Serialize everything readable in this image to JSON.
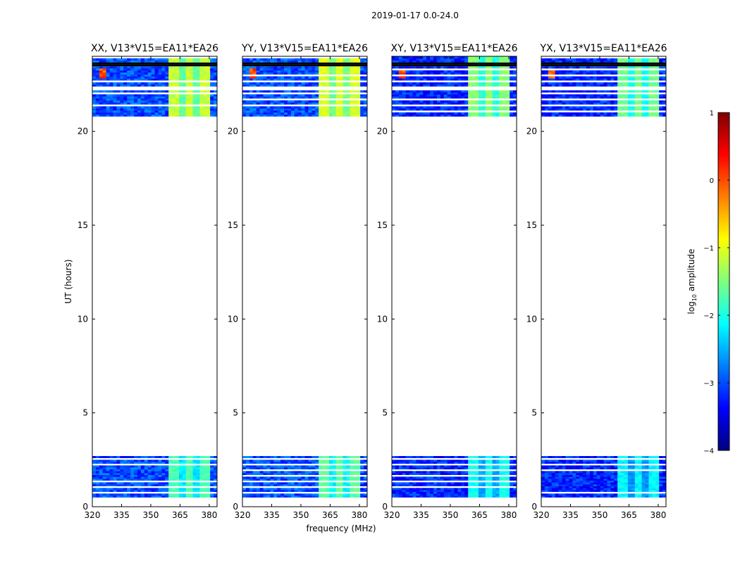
{
  "figure": {
    "suptitle": "2019-01-17 0.0-24.0",
    "xlabel": "frequency (MHz)",
    "ylabel": "UT (hours)"
  },
  "colorbar": {
    "label_prefix": "log",
    "label_sub": "10",
    "label_suffix": " amplitude",
    "range": [
      -4,
      1
    ],
    "ticks": [
      {
        "value": 1,
        "label": "1"
      },
      {
        "value": 0,
        "label": "0"
      },
      {
        "value": -1,
        "label": "−1"
      },
      {
        "value": -2,
        "label": "−2"
      },
      {
        "value": -3,
        "label": "−3"
      },
      {
        "value": -4,
        "label": "−4"
      }
    ],
    "colors": [
      "#00007f",
      "#0000ff",
      "#007fff",
      "#00ffff",
      "#7fff7f",
      "#ffff00",
      "#ff7f00",
      "#ff0000",
      "#7f0000"
    ]
  },
  "chart_data": {
    "type": "heatmap",
    "x_range": [
      320,
      384
    ],
    "y_range": [
      0,
      24
    ],
    "x_ticks": [
      {
        "value": 320,
        "label": "320"
      },
      {
        "value": 335,
        "label": "335"
      },
      {
        "value": 350,
        "label": "350"
      },
      {
        "value": 365,
        "label": "365"
      },
      {
        "value": 380,
        "label": "380"
      }
    ],
    "y_ticks": [
      {
        "value": 0,
        "label": "0"
      },
      {
        "value": 5,
        "label": "5"
      },
      {
        "value": 10,
        "label": "10"
      },
      {
        "value": 15,
        "label": "15"
      },
      {
        "value": 20,
        "label": "20"
      }
    ],
    "data_time_blocks_hours": [
      [
        0.5,
        2.7
      ],
      [
        20.8,
        24.0
      ]
    ],
    "flagged_band_mhz": [
      360,
      380
    ],
    "panels": [
      {
        "title": "XX, V13*V15=EA11*EA26",
        "baseline_log10": -3.0,
        "band_log10": -1.3
      },
      {
        "title": "YY, V13*V15=EA11*EA26",
        "baseline_log10": -3.0,
        "band_log10": -1.2
      },
      {
        "title": "XY, V13*V15=EA11*EA26",
        "baseline_log10": -3.2,
        "band_log10": -1.6
      },
      {
        "title": "YX, V13*V15=EA11*EA26",
        "baseline_log10": -3.2,
        "band_log10": -1.7
      }
    ]
  }
}
